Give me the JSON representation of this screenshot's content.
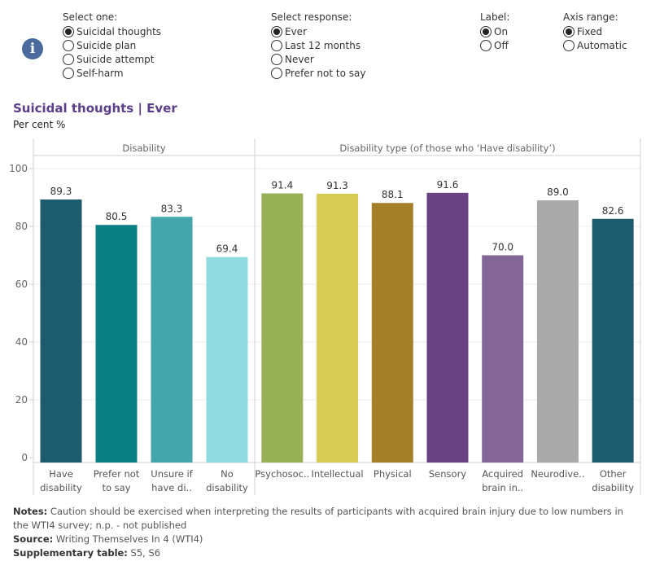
{
  "controls": {
    "measure": {
      "title": "Select one:",
      "options": [
        "Suicidal thoughts",
        "Suicide plan",
        "Suicide attempt",
        "Self-harm"
      ],
      "selected": 0
    },
    "response": {
      "title": "Select response:",
      "options": [
        "Ever",
        "Last 12 months",
        "Never",
        "Prefer not to say"
      ],
      "selected": 0
    },
    "label": {
      "title": "Label:",
      "options": [
        "On",
        "Off"
      ],
      "selected": 0
    },
    "axis_range": {
      "title": "Axis range:",
      "options": [
        "Fixed",
        "Automatic"
      ],
      "selected": 0
    }
  },
  "info_icon": "info-icon",
  "chart_title": "Suicidal thoughts | Ever",
  "chart_subtitle": "Per cent %",
  "chart_data": {
    "type": "bar",
    "title": "Suicidal thoughts | Ever",
    "ylabel": "Per cent %",
    "xlabel": "",
    "ylim": [
      0,
      100
    ],
    "yticks": [
      0,
      20,
      40,
      60,
      80,
      100
    ],
    "grid": true,
    "data_labels": true,
    "panels": [
      {
        "header": "Disability",
        "categories": [
          {
            "label": [
              "Have",
              "disability"
            ],
            "value": 89.3,
            "color": "#1d5b6e"
          },
          {
            "label": [
              "Prefer not",
              "to say"
            ],
            "value": 80.5,
            "color": "#0a8084"
          },
          {
            "label": [
              "Unsure if",
              "have di.."
            ],
            "value": 83.3,
            "color": "#44a6ad"
          },
          {
            "label": [
              "No",
              "disability"
            ],
            "value": 69.4,
            "color": "#8fdbe0"
          }
        ]
      },
      {
        "header": "Disability type (of those who ‘Have disability’)",
        "categories": [
          {
            "label": [
              "Psychosoc.."
            ],
            "value": 91.4,
            "color": "#97b055"
          },
          {
            "label": [
              "Intellectual"
            ],
            "value": 91.3,
            "color": "#d6cc55"
          },
          {
            "label": [
              "Physical"
            ],
            "value": 88.1,
            "color": "#a57e28"
          },
          {
            "label": [
              "Sensory"
            ],
            "value": 91.6,
            "color": "#684283"
          },
          {
            "label": [
              "Acquired",
              "brain in.."
            ],
            "value": 70.0,
            "color": "#836597"
          },
          {
            "label": [
              "Neurodive.."
            ],
            "value": 89.0,
            "color": "#a9a9a9"
          },
          {
            "label": [
              "Other",
              "disability"
            ],
            "value": 82.6,
            "color": "#1d5b6e"
          }
        ]
      }
    ]
  },
  "notes": {
    "notes_label": "Notes:",
    "notes_text": " Caution should be exercised when interpreting the results of participants with acquired brain injury due to low numbers in the WTI4 survey; n.p. - not published",
    "source_label": "Source:",
    "source_text": " Writing Themselves In 4 (WTI4)",
    "supp_label": "Supplementary table:",
    "supp_text": " S5, S6"
  }
}
